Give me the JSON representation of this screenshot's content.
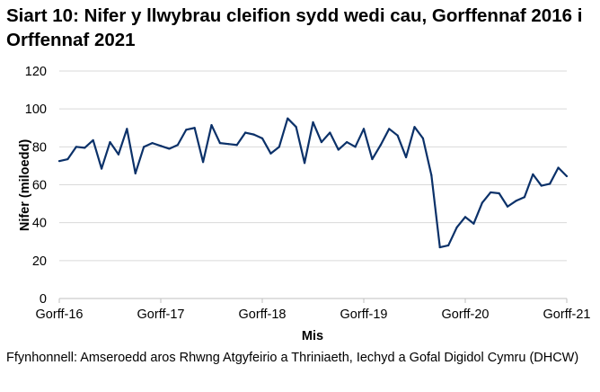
{
  "chart_data": {
    "type": "line",
    "title": "Siart 10: Nifer y llwybrau cleifion sydd wedi cau, Gorffennaf 2016 i Orffennaf 2021",
    "xlabel": "Mis",
    "ylabel": "Nifer (miloedd)",
    "ylim": [
      0,
      120
    ],
    "yticks": [
      0,
      20,
      40,
      60,
      80,
      100,
      120
    ],
    "xtick_labels": [
      "Gorff-16",
      "Gorff-17",
      "Gorff-18",
      "Gorff-19",
      "Gorff-20",
      "Gorff-21"
    ],
    "grid": true,
    "line_color": "#0b3169",
    "x_start": "2016-07",
    "x_end": "2021-07",
    "values": [
      72.5,
      73.5,
      80,
      79.5,
      83.5,
      68.5,
      82.5,
      76,
      89.5,
      66,
      80,
      82,
      80.5,
      79,
      81,
      89,
      90,
      72,
      91.5,
      82,
      81.5,
      81,
      87.5,
      86.5,
      84.5,
      76.5,
      80,
      95,
      90.5,
      71.5,
      93,
      82.5,
      87.5,
      78.5,
      82.5,
      80,
      89.5,
      73.5,
      81,
      89.5,
      86,
      74.5,
      90.5,
      84.5,
      65,
      27,
      28,
      37.5,
      43,
      39.5,
      50.5,
      56,
      55.5,
      48.5,
      51.5,
      53.5,
      65.5,
      59.5,
      60.5,
      69,
      64.5
    ]
  },
  "source": "Ffynhonnell: Amseroedd aros Rhwng Atgyfeirio a Thriniaeth, Iechyd a Gofal Digidol Cymru (DHCW)"
}
